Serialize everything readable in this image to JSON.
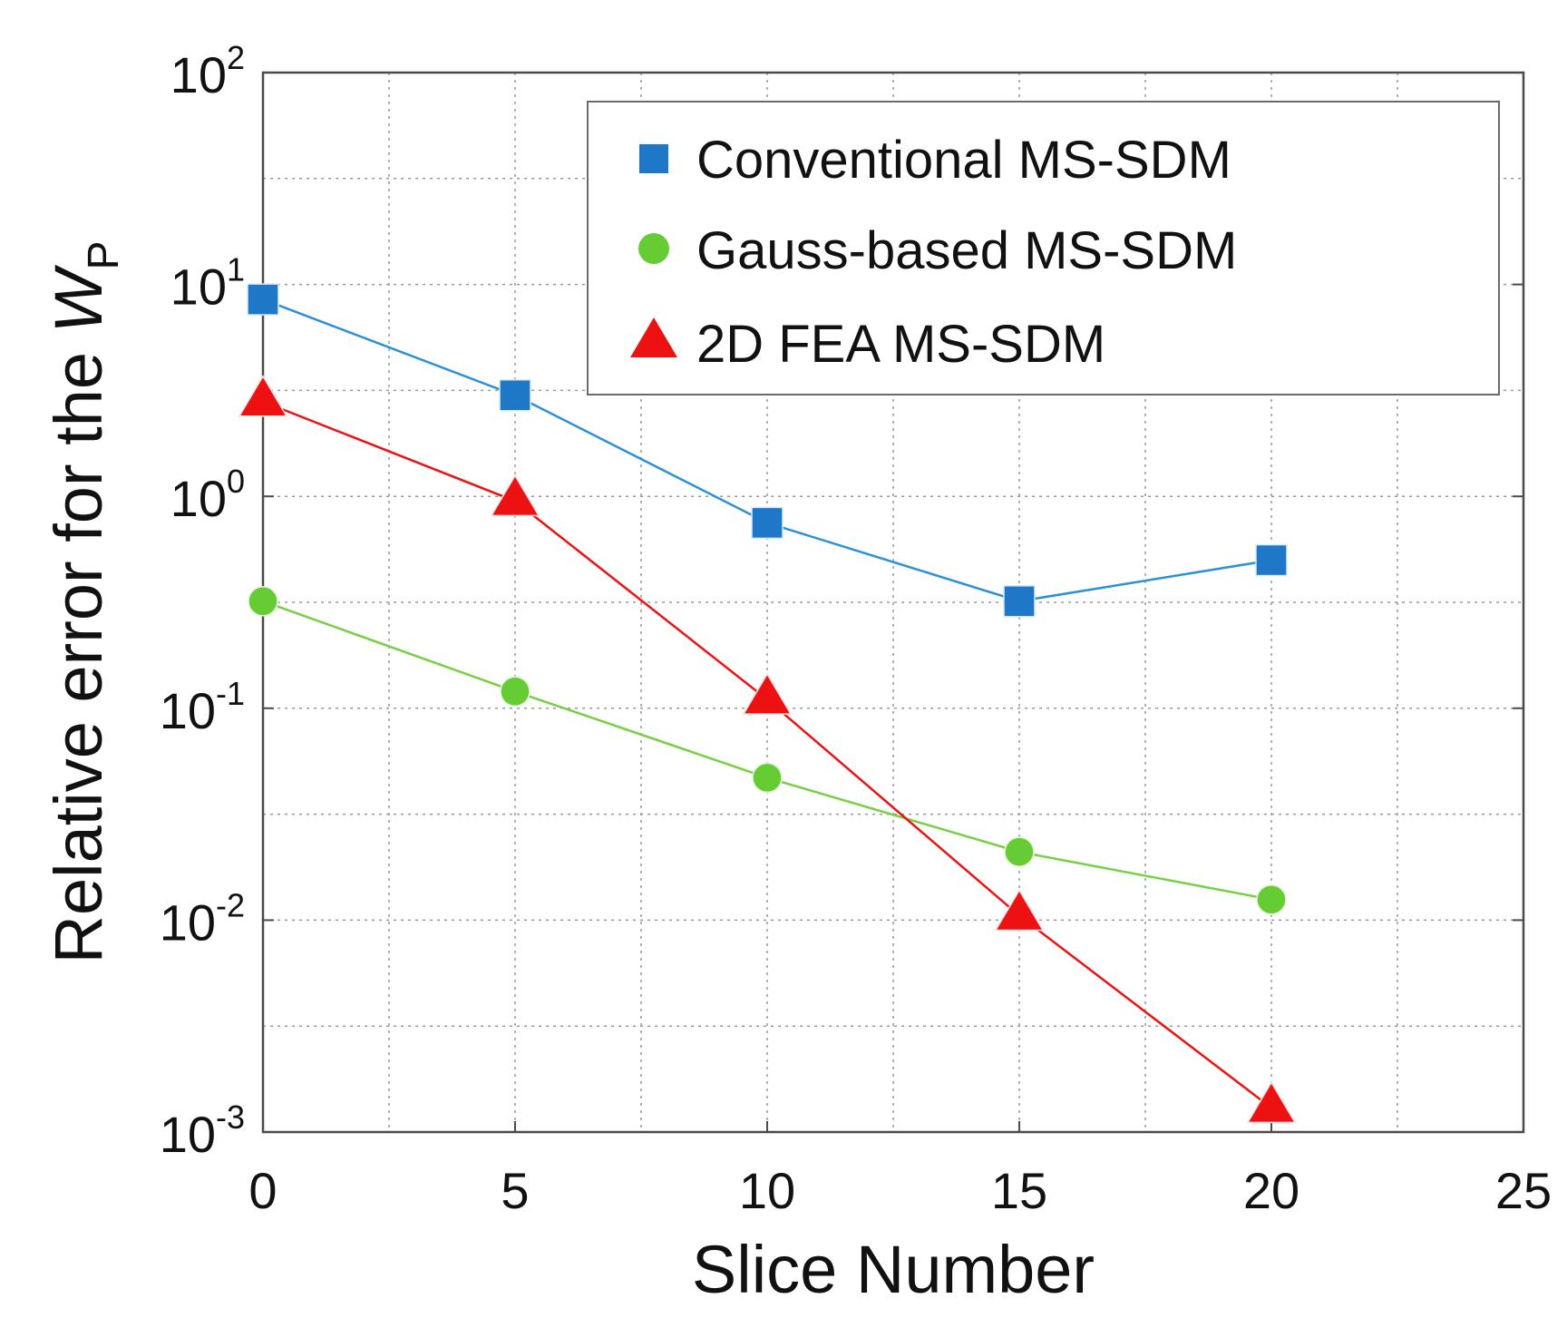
{
  "chart_data": {
    "type": "line",
    "title": "",
    "xlabel": "Slice Number",
    "ylabel_main": "Relative error for the ",
    "ylabel_symbol": "W",
    "ylabel_subscript": "P",
    "xlim": [
      0,
      25
    ],
    "ylim_log10": [
      -3,
      2
    ],
    "y_scale": "log",
    "x_ticks": [
      0,
      5,
      10,
      15,
      20,
      25
    ],
    "x_tick_labels": [
      "0",
      "5",
      "10",
      "15",
      "20",
      "25"
    ],
    "y_tick_exponents": [
      -3,
      -2,
      -1,
      0,
      1,
      2
    ],
    "y_tick_base": "10",
    "y_tick_exp_labels": [
      "-3",
      "-2",
      "-1",
      "0",
      "1",
      "2"
    ],
    "grid": true,
    "legend_position": "top-right",
    "x": [
      0,
      5,
      10,
      15,
      20
    ],
    "series": [
      {
        "name": "Conventional MS-SDM",
        "marker": "square",
        "color": "#1f77c8",
        "line_color": "#2a90d8",
        "values": [
          8.5,
          3.0,
          0.75,
          0.32,
          0.5
        ]
      },
      {
        "name": "Gauss-based MS-SDM",
        "marker": "circle",
        "color": "#66cc33",
        "line_color": "#77d044",
        "values": [
          0.32,
          0.12,
          0.047,
          0.021,
          0.0125
        ]
      },
      {
        "name": "2D FEA MS-SDM",
        "marker": "triangle",
        "color": "#ee1111",
        "line_color": "#ee1111",
        "values": [
          2.8,
          0.95,
          0.11,
          0.0105,
          0.0013
        ]
      }
    ]
  }
}
